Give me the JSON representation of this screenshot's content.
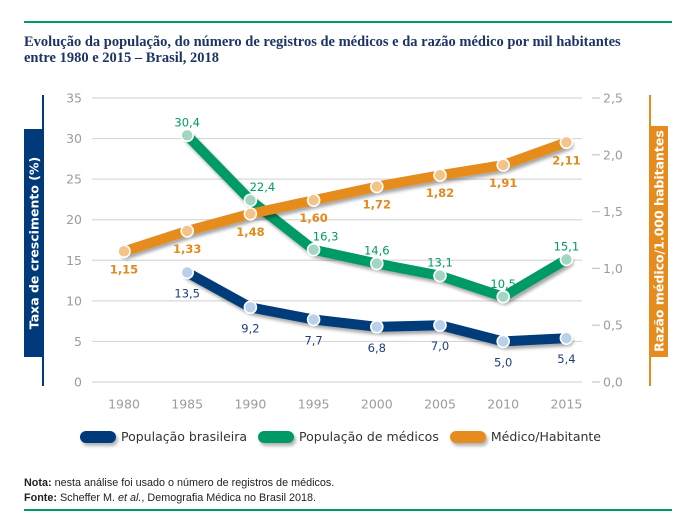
{
  "header": {
    "title_lines": [
      "Evolução da população, do número de registros de médicos e da razão médico por mil habitantes",
      "entre 1980 e 2015 – Brasil, 2018"
    ]
  },
  "chart_data": {
    "type": "line",
    "title": "Evolução da população, do número de registros de médicos e da razão médico por mil habitantes entre 1980 e 2015 – Brasil, 2018",
    "categories": [
      "1980",
      "1985",
      "1990",
      "1995",
      "2000",
      "2005",
      "2010",
      "2015"
    ],
    "xlabel": "",
    "ylabel": "Taxa de crescimento (%)",
    "ylabel_right": "Razão médico/1.000 habitantes",
    "ylim": [
      0,
      35
    ],
    "yticks": [
      0,
      5,
      10,
      15,
      20,
      25,
      30,
      35
    ],
    "ytick_labels": [
      "0",
      "5",
      "10",
      "15",
      "20",
      "25",
      "30",
      "35"
    ],
    "ylim_right": [
      0,
      2.5
    ],
    "yticks_right": [
      0,
      0.5,
      1.0,
      1.5,
      2.0,
      2.5
    ],
    "ytick_labels_right": [
      "0,0",
      "0,5",
      "1,0",
      "1,5",
      "2,0",
      "2,5"
    ],
    "grid": true,
    "legend_position": "bottom",
    "series": [
      {
        "name": "População brasileira",
        "axis": "left",
        "color": "#013a7a",
        "marker_color": "#b9d0ec",
        "label_color": "#1f3f7a",
        "values": [
          null,
          13.5,
          9.2,
          7.7,
          6.8,
          7.0,
          5.0,
          5.4
        ],
        "labels": [
          null,
          "13,5",
          "9,2",
          "7,7",
          "6,8",
          "7,0",
          "5,0",
          "5,4"
        ]
      },
      {
        "name": "População de médicos",
        "axis": "left",
        "color": "#009a66",
        "marker_color": "#a2d6bf",
        "label_color": "#009a66",
        "values": [
          null,
          30.4,
          22.4,
          16.3,
          14.6,
          13.1,
          10.5,
          15.1
        ],
        "labels": [
          null,
          "30,4",
          "22,4",
          "16,3",
          "14,6",
          "13,1",
          "10,5",
          "15,1"
        ]
      },
      {
        "name": "Médico/Habitante",
        "axis": "right",
        "color": "#e68c1e",
        "marker_color": "#f3c488",
        "label_color": "#e28a1c",
        "values": [
          1.15,
          1.33,
          1.48,
          1.6,
          1.72,
          1.82,
          1.91,
          2.11
        ],
        "labels": [
          "1,15",
          "1,33",
          "1,48",
          "1,60",
          "1,72",
          "1,82",
          "1,91",
          "2,11"
        ]
      }
    ]
  },
  "notes": {
    "nota_label": "Nota:",
    "nota_text": " nesta análise foi usado o número de registros de médicos.",
    "fonte_label": "Fonte:",
    "fonte_text_1": " Scheffer M. ",
    "fonte_italic": "et al.",
    "fonte_text_2": ", Demografia Médica no Brasil 2018."
  }
}
